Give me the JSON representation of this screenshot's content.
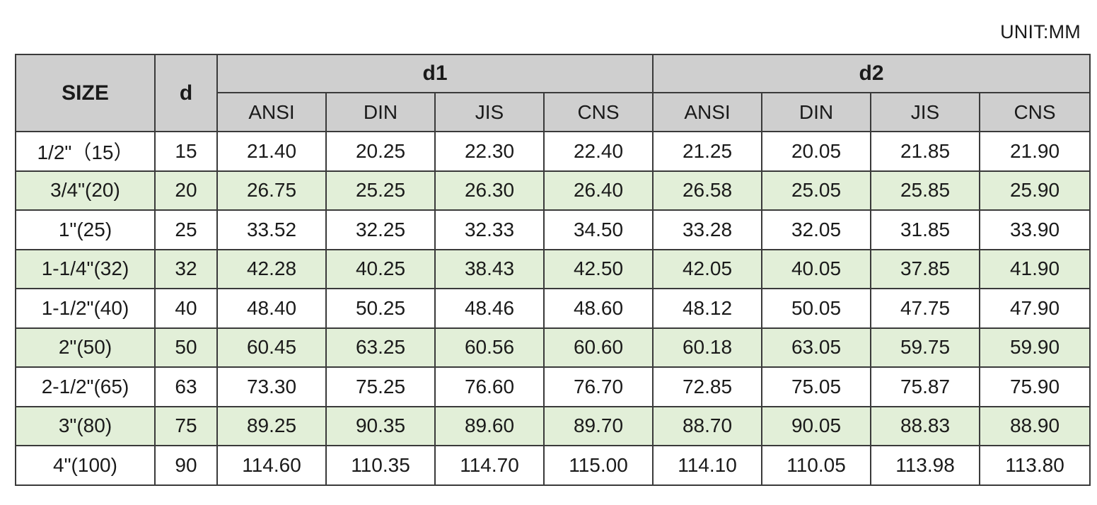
{
  "unit_label": "UNIT:MM",
  "headers": {
    "size": "SIZE",
    "d": "d",
    "d1": "d1",
    "d2": "d2",
    "standards": [
      "ANSI",
      "DIN",
      "JIS",
      "CNS"
    ]
  },
  "rows": [
    {
      "size": "1/2\"（15）",
      "d": "15",
      "d1": [
        "21.40",
        "20.25",
        "22.30",
        "22.40"
      ],
      "d2": [
        "21.25",
        "20.05",
        "21.85",
        "21.90"
      ]
    },
    {
      "size": "3/4\"(20)",
      "d": "20",
      "d1": [
        "26.75",
        "25.25",
        "26.30",
        "26.40"
      ],
      "d2": [
        "26.58",
        "25.05",
        "25.85",
        "25.90"
      ]
    },
    {
      "size": "1\"(25)",
      "d": "25",
      "d1": [
        "33.52",
        "32.25",
        "32.33",
        "34.50"
      ],
      "d2": [
        "33.28",
        "32.05",
        "31.85",
        "33.90"
      ]
    },
    {
      "size": "1-1/4\"(32)",
      "d": "32",
      "d1": [
        "42.28",
        "40.25",
        "38.43",
        "42.50"
      ],
      "d2": [
        "42.05",
        "40.05",
        "37.85",
        "41.90"
      ]
    },
    {
      "size": "1-1/2\"(40)",
      "d": "40",
      "d1": [
        "48.40",
        "50.25",
        "48.46",
        "48.60"
      ],
      "d2": [
        "48.12",
        "50.05",
        "47.75",
        "47.90"
      ]
    },
    {
      "size": "2\"(50)",
      "d": "50",
      "d1": [
        "60.45",
        "63.25",
        "60.56",
        "60.60"
      ],
      "d2": [
        "60.18",
        "63.05",
        "59.75",
        "59.90"
      ]
    },
    {
      "size": "2-1/2\"(65)",
      "d": "63",
      "d1": [
        "73.30",
        "75.25",
        "76.60",
        "76.70"
      ],
      "d2": [
        "72.85",
        "75.05",
        "75.87",
        "75.90"
      ]
    },
    {
      "size": "3\"(80)",
      "d": "75",
      "d1": [
        "89.25",
        "90.35",
        "89.60",
        "89.70"
      ],
      "d2": [
        "88.70",
        "90.05",
        "88.83",
        "88.90"
      ]
    },
    {
      "size": "4\"(100)",
      "d": "90",
      "d1": [
        "114.60",
        "110.35",
        "114.70",
        "115.00"
      ],
      "d2": [
        "114.10",
        "110.05",
        "113.98",
        "113.80"
      ]
    }
  ],
  "colors": {
    "header_bg": "#cfcfcf",
    "stripe_bg": "#e2efd8",
    "border": "#3a3a3a"
  }
}
